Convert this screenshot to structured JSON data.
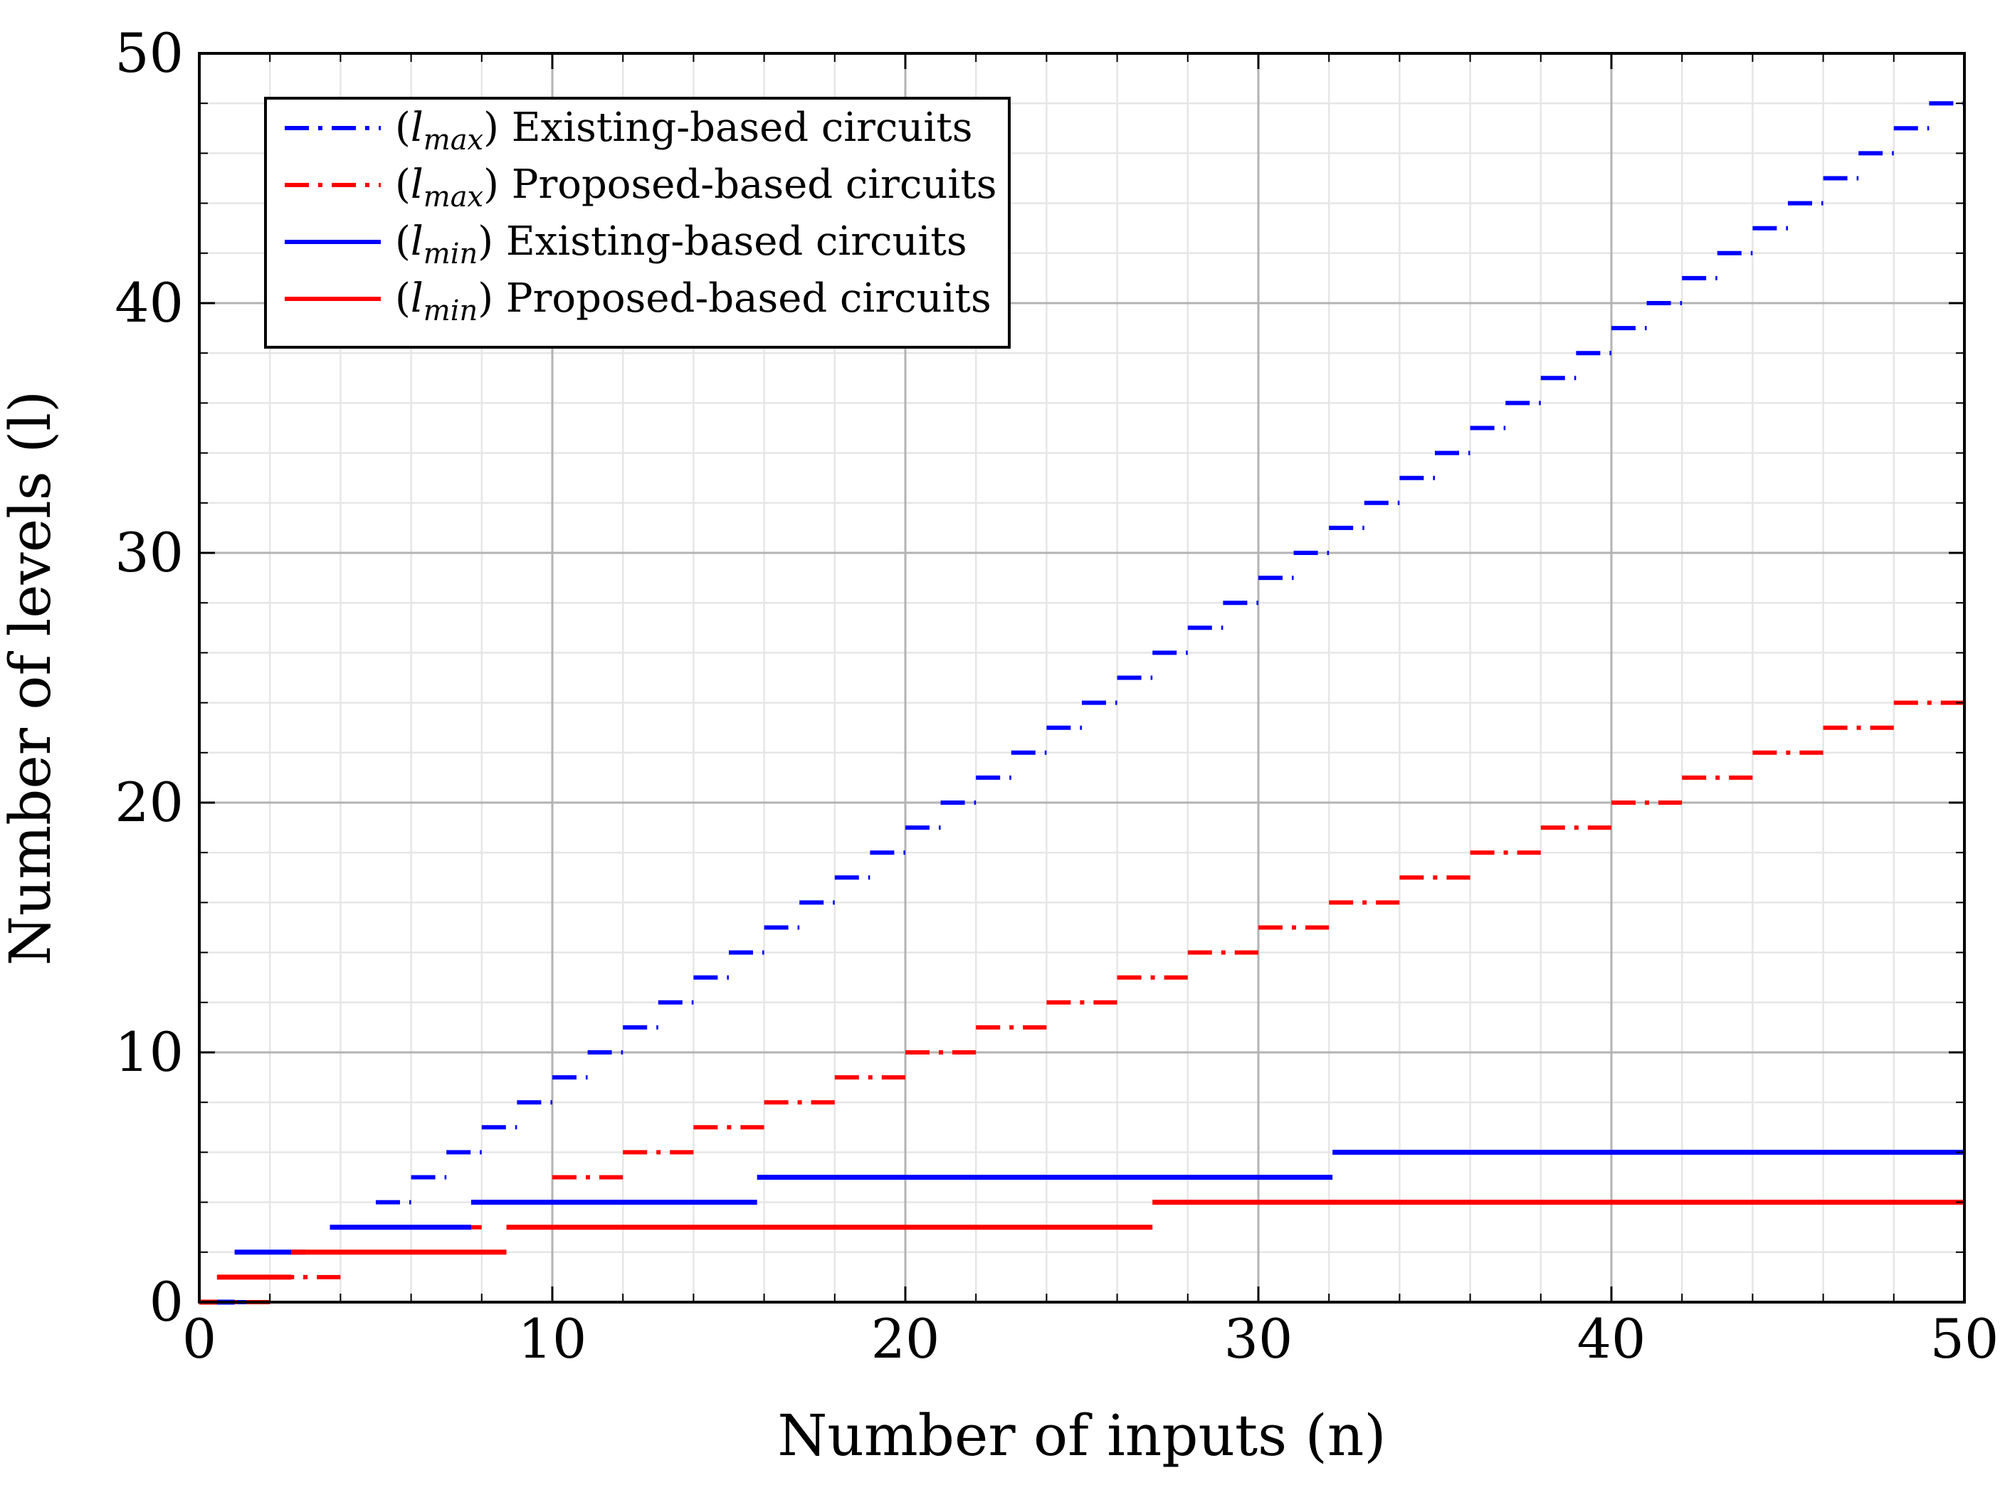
{
  "chart_data": {
    "type": "line",
    "title": "",
    "xlabel": "Number of inputs (n)",
    "ylabel": "Number of levels (l)",
    "xlim": [
      0,
      50
    ],
    "ylim": [
      0,
      50
    ],
    "xticks": [
      "0",
      "10",
      "20",
      "30",
      "40",
      "50"
    ],
    "yticks": [
      "0",
      "10",
      "20",
      "30",
      "40",
      "50"
    ],
    "grid": true,
    "legend_position": "top-left",
    "colors": {
      "existing": "#0000ff",
      "proposed": "#ff0000",
      "major_grid": "#b3b3b3",
      "minor_grid": "#e6e6e6"
    },
    "series": [
      {
        "name": "lmax-existing",
        "legend": {
          "var": "l",
          "sub": "max",
          "text": "Existing-based circuits"
        },
        "color": "#0000ff",
        "style": "dash-dot",
        "steps": {
          "start": 1,
          "end": 50,
          "width": 1,
          "first_level": 0,
          "level_increment": 1
        }
      },
      {
        "name": "lmax-proposed",
        "legend": {
          "var": "l",
          "sub": "max",
          "text": "Proposed-based circuits"
        },
        "color": "#ff0000",
        "style": "dash-dot",
        "steps": {
          "start": 0,
          "end": 50,
          "width": 2,
          "first_level": 0,
          "level_increment": 1
        }
      },
      {
        "name": "lmin-existing",
        "legend": {
          "var": "l",
          "sub": "min",
          "text": "Existing-based circuits"
        },
        "color": "#0000ff",
        "style": "solid",
        "segments": [
          {
            "x0": 0,
            "x1": 1,
            "y": 0
          },
          {
            "x0": 1,
            "x1": 3,
            "y": 2
          },
          {
            "x0": 3.7,
            "x1": 7.7,
            "y": 3
          },
          {
            "x0": 7.7,
            "x1": 15.8,
            "y": 4
          },
          {
            "x0": 15.8,
            "x1": 32.1,
            "y": 5
          },
          {
            "x0": 32.1,
            "x1": 50,
            "y": 6
          }
        ]
      },
      {
        "name": "lmin-proposed",
        "legend": {
          "var": "l",
          "sub": "min",
          "text": "Proposed-based circuits"
        },
        "color": "#ff0000",
        "style": "solid",
        "segments": [
          {
            "x0": 0,
            "x1": 0.5,
            "y": 0
          },
          {
            "x0": 0.5,
            "x1": 2.6,
            "y": 1
          },
          {
            "x0": 2.6,
            "x1": 8.7,
            "y": 2
          },
          {
            "x0": 8.7,
            "x1": 27,
            "y": 3
          },
          {
            "x0": 27,
            "x1": 50,
            "y": 4
          }
        ]
      }
    ]
  }
}
